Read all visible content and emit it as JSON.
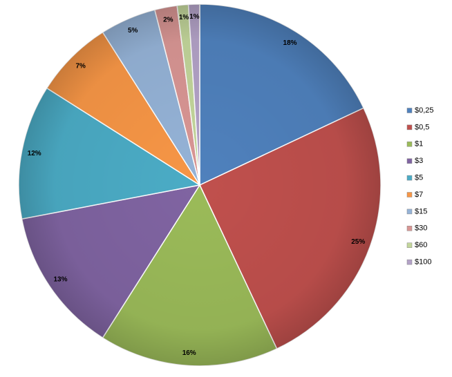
{
  "chart_data": {
    "type": "pie",
    "categories": [
      "$0,25",
      "$0,5",
      "$1",
      "$3",
      "$5",
      "$7",
      "$15",
      "$30",
      "$60",
      "$100"
    ],
    "values": [
      18,
      25,
      16,
      13,
      12,
      7,
      5,
      2,
      1,
      1
    ],
    "value_labels": [
      "18%",
      "25%",
      "16%",
      "13%",
      "12%",
      "7%",
      "5%",
      "2%",
      "1%",
      "1%"
    ],
    "colors": [
      "#4f81bd",
      "#c0504d",
      "#9bbb59",
      "#8064a2",
      "#4bacc6",
      "#f79646",
      "#95b3d7",
      "#d99694",
      "#c3d69b",
      "#b3a2c7"
    ],
    "legend": "right"
  }
}
